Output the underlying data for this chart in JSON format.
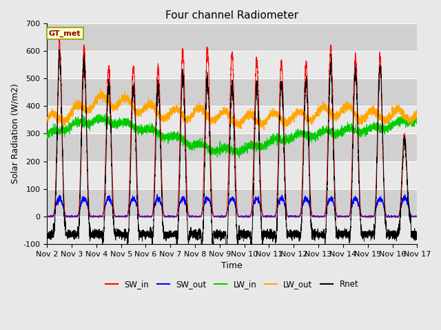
{
  "title": "Four channel Radiometer",
  "xlabel": "Time",
  "ylabel": "Solar Radiation (W/m2)",
  "ylim": [
    -100,
    700
  ],
  "xlim": [
    0,
    15
  ],
  "x_tick_labels": [
    "Nov 2",
    "Nov 3",
    "Nov 4",
    "Nov 5",
    "Nov 6",
    "Nov 7",
    "Nov 8",
    "Nov 9",
    "Nov 10",
    "Nov 11",
    "Nov 12",
    "Nov 13",
    "Nov 14",
    "Nov 15",
    "Nov 16",
    "Nov 17"
  ],
  "y_ticks": [
    -100,
    0,
    100,
    200,
    300,
    400,
    500,
    600,
    700
  ],
  "station_label": "GT_met",
  "legend_entries": [
    {
      "label": "SW_in",
      "color": "#ff0000"
    },
    {
      "label": "SW_out",
      "color": "#0000ff"
    },
    {
      "label": "LW_in",
      "color": "#00cc00"
    },
    {
      "label": "LW_out",
      "color": "#ffa500"
    },
    {
      "label": "Rnet",
      "color": "#000000"
    }
  ],
  "fig_bg_color": "#e8e8e8",
  "plot_bg_color": "#dcdcdc",
  "band_colors": [
    "#e8e8e8",
    "#d0d0d0"
  ],
  "grid_color": "#ffffff",
  "title_fontsize": 11,
  "label_fontsize": 9,
  "tick_fontsize": 8,
  "sw_in_peaks": [
    645,
    615,
    555,
    555,
    560,
    612,
    615,
    610,
    590,
    590,
    580,
    640,
    585,
    590,
    300
  ],
  "lw_in_base": [
    295,
    330,
    350,
    340,
    315,
    305,
    290,
    275,
    270,
    280,
    290,
    300,
    310,
    315,
    330,
    355
  ],
  "lw_out_base": [
    345,
    375,
    420,
    415,
    390,
    370,
    375,
    365,
    350,
    355,
    360,
    375,
    385,
    365,
    368,
    368
  ],
  "night_rnet": -65,
  "sw_out_peak": 65
}
